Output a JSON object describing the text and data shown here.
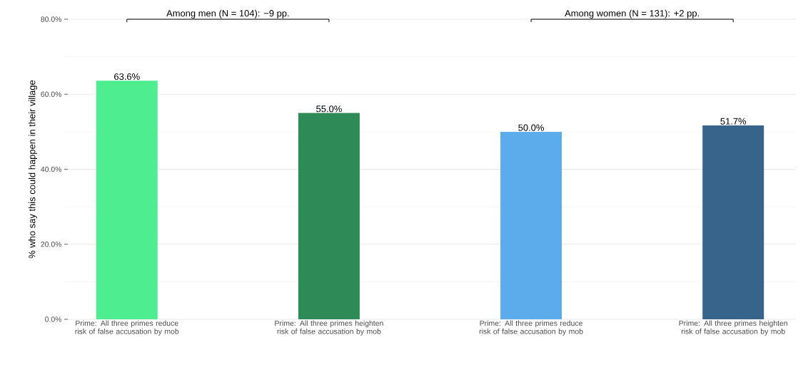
{
  "chart_data": {
    "type": "bar",
    "ylabel": "% who say this could happen in their village",
    "categories": [
      "Prime: All three primes reduce risk of false accusation by mob",
      "Prime: All three primes heighten risk of false accusation by mob",
      "Prime: All three primes reduce risk of false accusation by mob",
      "Prime: All three primes heighten risk of false accusation by mob"
    ],
    "values": [
      63.6,
      55.0,
      50.0,
      51.7
    ],
    "colors": [
      "#4eee90",
      "#2e8b57",
      "#5caceb",
      "#36648b"
    ],
    "value_labels": [
      "63.6%",
      "55.0%",
      "50.0%",
      "51.7%"
    ],
    "ylim": [
      0,
      80
    ],
    "yticks": [
      {
        "value": 0,
        "label": "0.0%"
      },
      {
        "value": 20,
        "label": "20.0%"
      },
      {
        "value": 40,
        "label": "40.0%"
      },
      {
        "value": 60,
        "label": "60.0%"
      },
      {
        "value": 80,
        "label": "80.0%"
      }
    ],
    "grid": "y",
    "annotations": [
      "Among men (N = 104): −9 pp.",
      "Among women (N = 131): +2 pp."
    ]
  }
}
